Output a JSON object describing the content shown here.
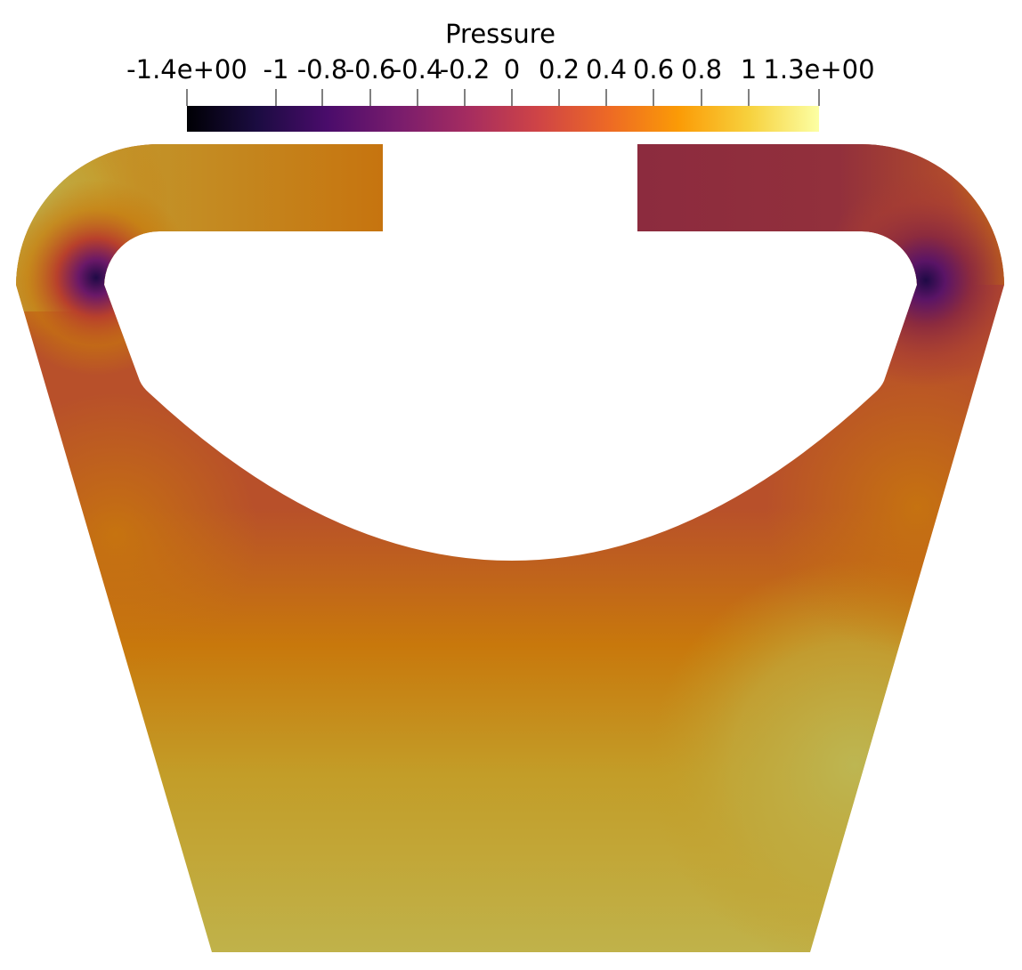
{
  "colorbar": {
    "title": "Pressure",
    "min_label": "-1.4e+00",
    "max_label": "1.3e+00",
    "tick_labels": [
      "-1",
      "-0.8",
      "-0.6",
      "-0.4",
      "-0.2",
      "0",
      "0.2",
      "0.4",
      "0.6",
      "0.8",
      "1"
    ],
    "stops": [
      "#000004",
      "#1b0c41",
      "#4a0c6b",
      "#781c6d",
      "#a52c60",
      "#cf4446",
      "#ed6925",
      "#fb9b06",
      "#f7d13d",
      "#fcffa4"
    ]
  },
  "field_colors": {
    "lobe_left": "#bdb04c",
    "mid_orange": "#c8780c",
    "rust": "#b84a24",
    "maroon": "#8c2b3e",
    "vortex": "#2a0a4a",
    "gold": "#c39d28",
    "bottom_yellow": "#c0b24a",
    "right_yellow": "#bdb652"
  }
}
